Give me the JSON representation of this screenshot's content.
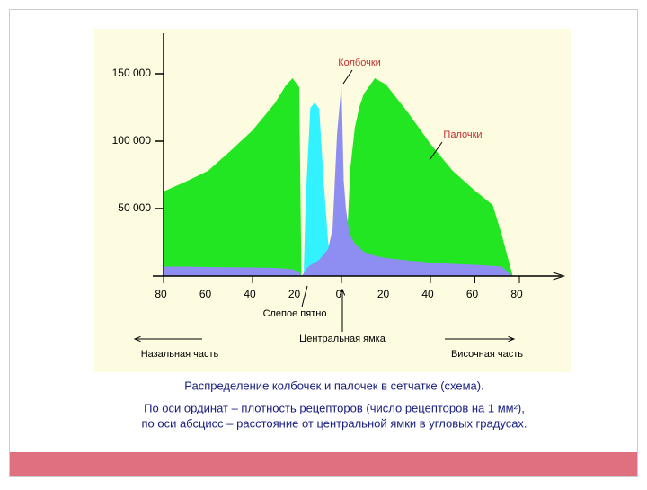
{
  "chart_data": {
    "type": "area",
    "x": [
      -80,
      -70,
      -60,
      -50,
      -40,
      -30,
      -25,
      -22,
      -19,
      -18,
      -17,
      -16,
      -14,
      -12,
      -10,
      -8,
      -6,
      -4,
      -2,
      0,
      1,
      2,
      3,
      4,
      6,
      8,
      10,
      15,
      20,
      30,
      40,
      50,
      60,
      68,
      72,
      77
    ],
    "series": [
      {
        "name": "Палочки",
        "color": "#22e622",
        "values": [
          62700,
          70000,
          78000,
          92700,
          108000,
          128000,
          141300,
          146700,
          140000,
          0,
          0,
          0,
          0,
          0,
          0,
          0,
          0,
          0,
          0,
          0,
          0,
          10000,
          45000,
          80000,
          110000,
          125000,
          135000,
          146700,
          142000,
          121000,
          98000,
          78000,
          63300,
          52700,
          31000,
          0
        ]
      },
      {
        "color": "#33f2ff",
        "values": [
          null,
          null,
          null,
          null,
          null,
          null,
          null,
          null,
          null,
          null,
          0,
          60000,
          124700,
          128700,
          124000,
          70000,
          25000,
          8000,
          2000,
          0,
          null,
          null,
          null,
          null,
          null,
          null,
          null,
          null,
          null,
          null,
          null,
          null,
          null,
          null,
          null,
          null
        ]
      },
      {
        "name": "Колбочки",
        "color": "#8e8ef2",
        "values": [
          7000,
          7000,
          6700,
          6500,
          6300,
          6000,
          5500,
          5000,
          3000,
          0,
          2000,
          5000,
          8000,
          10000,
          12000,
          16000,
          20000,
          35000,
          105000,
          142000,
          71000,
          50000,
          38000,
          30000,
          24000,
          21000,
          18000,
          15000,
          13300,
          11500,
          10000,
          9000,
          8300,
          7500,
          7200,
          0
        ]
      }
    ],
    "xlim": [
      -80,
      100
    ],
    "xticks": [
      {
        "value": -80,
        "label": "80"
      },
      {
        "value": -60,
        "label": "60"
      },
      {
        "value": -40,
        "label": "40"
      },
      {
        "value": -20,
        "label": "20"
      },
      0,
      20,
      40,
      60,
      80
    ],
    "ylim": [
      0,
      180000
    ],
    "yticks": [
      {
        "value": 50000,
        "label": "50 000"
      },
      {
        "value": 100000,
        "label": "100 000"
      },
      {
        "value": 150000,
        "label": "150 000"
      }
    ],
    "annotations": [
      "Колбочки",
      "Палочки",
      "Слепое пятно",
      "Центральная ямка",
      "Назальная часть",
      "Височная часть"
    ]
  },
  "caption": [
    "Распределение колбочек и палочек в сетчатке (схема).",
    "По оси ординат – плотность рецепторов (число рецепторов на 1 мм²),",
    "по оси абсцисс – расстояние от центральной ямки в угловых градусах."
  ]
}
